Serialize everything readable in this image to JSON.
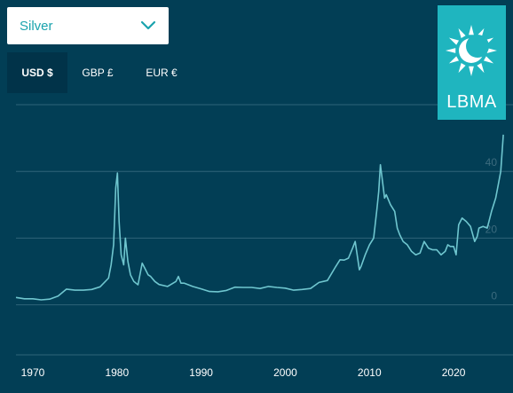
{
  "selector": {
    "value": "Silver",
    "icon": "chevron-down-icon"
  },
  "currency_tabs": [
    {
      "label": "USD $",
      "active": true
    },
    {
      "label": "GBP £",
      "active": false
    },
    {
      "label": "EUR €",
      "active": false
    }
  ],
  "logo": {
    "text": "LBMA",
    "icon": "sun-icon"
  },
  "colors": {
    "background": "#023e55",
    "line": "#6fc6cf",
    "accent": "#1fb5bf",
    "grid": "#2f6479"
  },
  "chart_data": {
    "type": "line",
    "title": "",
    "xlabel": "",
    "ylabel": "",
    "xlim": [
      1968,
      2026
    ],
    "ylim": [
      -15,
      60
    ],
    "x_ticks": [
      1970,
      1980,
      1990,
      2000,
      2010,
      2020
    ],
    "y_ticks": [
      0,
      20,
      40
    ],
    "grid": true,
    "series": [
      {
        "x": [
          1968,
          1969,
          1970,
          1971,
          1972,
          1973,
          1974,
          1975,
          1976,
          1977,
          1978,
          1979,
          1979.3,
          1979.6,
          1979.85,
          1980.05,
          1980.25,
          1980.5,
          1980.8,
          1981,
          1981.3,
          1981.6,
          1982,
          1982.5,
          1983,
          1983.3,
          1983.7,
          1984,
          1984.5,
          1985,
          1986,
          1987,
          1987.3,
          1987.6,
          1988,
          1989,
          1990,
          1991,
          1992,
          1993,
          1994,
          1995,
          1996,
          1997,
          1998,
          1999,
          2000,
          2001,
          2002,
          2003,
          2004,
          2005,
          2006,
          2006.5,
          2007,
          2007.5,
          2008,
          2008.3,
          2008.8,
          2009,
          2009.5,
          2010,
          2010.5,
          2010.9,
          2011.1,
          2011.3,
          2011.5,
          2011.8,
          2012,
          2012.5,
          2013,
          2013.3,
          2013.6,
          2014,
          2014.5,
          2015,
          2015.5,
          2016,
          2016.5,
          2017,
          2017.5,
          2018,
          2018.5,
          2019,
          2019.3,
          2019.6,
          2020,
          2020.3,
          2020.6,
          2021,
          2021.5,
          2022,
          2022.5,
          2022.8,
          2023,
          2023.5,
          2024,
          2024.5,
          2025,
          2025.3,
          2025.6,
          2025.9
        ],
        "values": [
          2.2,
          1.8,
          1.8,
          1.5,
          1.7,
          2.6,
          4.7,
          4.4,
          4.4,
          4.6,
          5.4,
          8.0,
          12.0,
          18.0,
          35.0,
          39.5,
          25.0,
          15.0,
          12.0,
          20.0,
          13.0,
          9.0,
          7.0,
          6.0,
          12.5,
          11.0,
          9.0,
          8.5,
          7.0,
          6.1,
          5.5,
          7.0,
          8.5,
          6.5,
          6.5,
          5.5,
          4.8,
          4.0,
          3.9,
          4.3,
          5.3,
          5.2,
          5.2,
          4.9,
          5.5,
          5.2,
          5.0,
          4.4,
          4.6,
          4.9,
          6.7,
          7.3,
          11.5,
          13.5,
          13.4,
          14.0,
          17.0,
          19.0,
          10.5,
          11.5,
          15.0,
          18.0,
          20.0,
          29.0,
          34.0,
          42.0,
          38.0,
          32.0,
          33.0,
          30.0,
          28.0,
          23.0,
          21.0,
          19.0,
          18.0,
          16.0,
          15.0,
          15.5,
          19.0,
          17.0,
          16.5,
          16.5,
          15.0,
          16.0,
          18.0,
          17.5,
          17.5,
          15.0,
          24.0,
          26.0,
          25.0,
          23.5,
          19.0,
          20.5,
          23.0,
          23.5,
          23.0,
          28.0,
          32.0,
          36.0,
          40.0,
          51.0
        ]
      }
    ]
  }
}
